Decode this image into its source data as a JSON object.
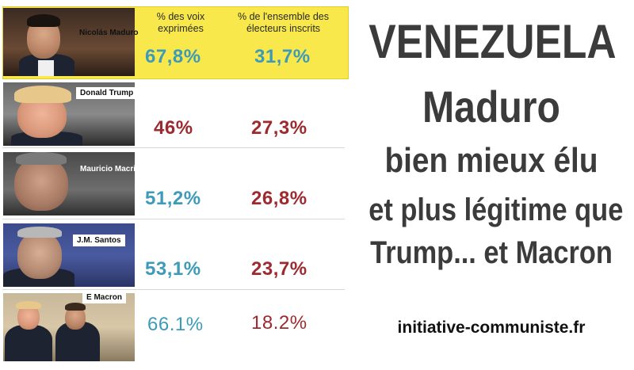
{
  "headers": {
    "voix": "% des voix exprimées",
    "inscrits": "% de l'ensemble des électeurs inscrits"
  },
  "rows": [
    {
      "name": "Nicolás Maduro",
      "voix": "67,8%",
      "inscrits": "31,7%"
    },
    {
      "name": "Donald Trump",
      "voix": "46%",
      "inscrits": "27,3%"
    },
    {
      "name": "Mauricio Macri",
      "voix": "51,2%",
      "inscrits": "26,8%"
    },
    {
      "name": "J.M. Santos",
      "voix": "53,1%",
      "inscrits": "23,7%"
    },
    {
      "name": "E Macron",
      "voix": "66.1%",
      "inscrits": "18.2%"
    }
  ],
  "headline": {
    "line1": "VENEZUELA",
    "line2": "Maduro",
    "line3": "bien mieux élu",
    "line4": "et plus légitime que",
    "line5": "Trump... et Macron"
  },
  "site": "initiative-communiste.fr",
  "colors": {
    "highlight": "#f8e84b",
    "blue_value": "#3d9ab9",
    "red_value": "#9d2a2e",
    "headline_text": "#3b3b3b"
  }
}
